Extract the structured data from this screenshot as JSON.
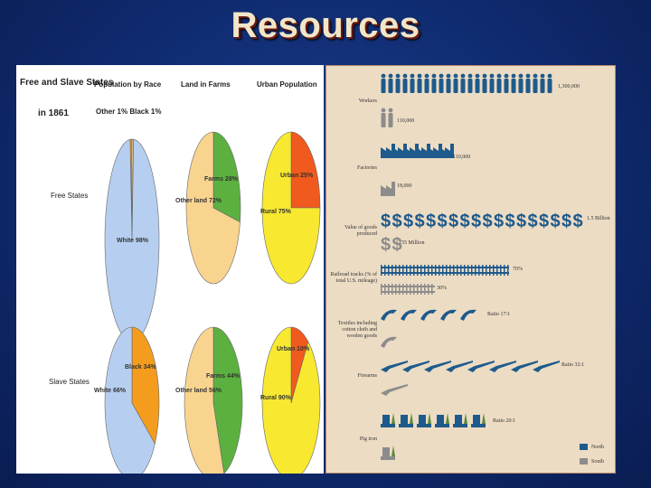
{
  "slide": {
    "title": "Resources"
  },
  "left_panel": {
    "title_line1": "Free and Slave States",
    "title_line2": "in 1861",
    "col_headers": [
      "Population by Race",
      "Land in Farms",
      "Urban Population"
    ],
    "row_labels": [
      "Free States",
      "Slave States"
    ],
    "free_population": {
      "slices": [
        {
          "label": "White 98%",
          "value": 98,
          "color": "#b6cff0"
        },
        {
          "label": "Other 1%",
          "value": 1,
          "color": "#e0c48a"
        },
        {
          "label": "Black 1%",
          "value": 1,
          "color": "#f39c1e"
        }
      ],
      "top_labels": "Other 1%  Black 1%",
      "inner_label": "White 98%"
    },
    "free_land": {
      "slices": [
        {
          "label": "Farms 28%",
          "value": 28,
          "color": "#5cb040"
        },
        {
          "label": "Other land 72%",
          "value": 72,
          "color": "#f8d48e"
        }
      ],
      "farms_label": "Farms 28%",
      "other_label": "Other land 72%"
    },
    "free_urban": {
      "slices": [
        {
          "label": "Urban 25%",
          "value": 25,
          "color": "#f05a1e"
        },
        {
          "label": "Rural 75%",
          "value": 75,
          "color": "#f8e830"
        }
      ],
      "urban_label": "Urban 25%",
      "rural_label": "Rural 75%"
    },
    "slave_population": {
      "slices": [
        {
          "label": "Black 34%",
          "value": 34,
          "color": "#f39c1e"
        },
        {
          "label": "White 66%",
          "value": 66,
          "color": "#b6cff0"
        }
      ],
      "black_label": "Black 34%",
      "white_label": "White 66%"
    },
    "slave_land": {
      "slices": [
        {
          "label": "Farms 44%",
          "value": 44,
          "color": "#5cb040"
        },
        {
          "label": "Other land 56%",
          "value": 56,
          "color": "#f8d48e"
        }
      ],
      "farms_label": "Farms 44%",
      "other_label": "Other land 56%"
    },
    "slave_urban": {
      "slices": [
        {
          "label": "Urban 10%",
          "value": 10,
          "color": "#f05a1e"
        },
        {
          "label": "Rural 90%",
          "value": 90,
          "color": "#f8e830"
        }
      ],
      "urban_label": "Urban 10%",
      "rural_label": "Rural 90%"
    }
  },
  "right_panel": {
    "rows": [
      {
        "label": "Workers",
        "north": "1,300,000",
        "south": "110,000"
      },
      {
        "label": "Factories",
        "north": "110,000",
        "south": "18,000"
      },
      {
        "label": "Value of goods produced",
        "north": "1.5 Billion",
        "south": "155 Million"
      },
      {
        "label": "Railroad tracks (% of total U.S. mileage)",
        "north": "70%",
        "south": "30%"
      },
      {
        "label": "Textiles including cotton cloth and woolen goods",
        "north": "Ratio 17:1",
        "south": ""
      },
      {
        "label": "Firearms",
        "north": "Ratio 32:1",
        "south": ""
      },
      {
        "label": "Pig iron",
        "north": "Ratio 20:1",
        "south": ""
      }
    ],
    "legend": [
      {
        "label": "North",
        "color": "#1e5a8c"
      },
      {
        "label": "South",
        "color": "#8c8c8c"
      }
    ]
  }
}
